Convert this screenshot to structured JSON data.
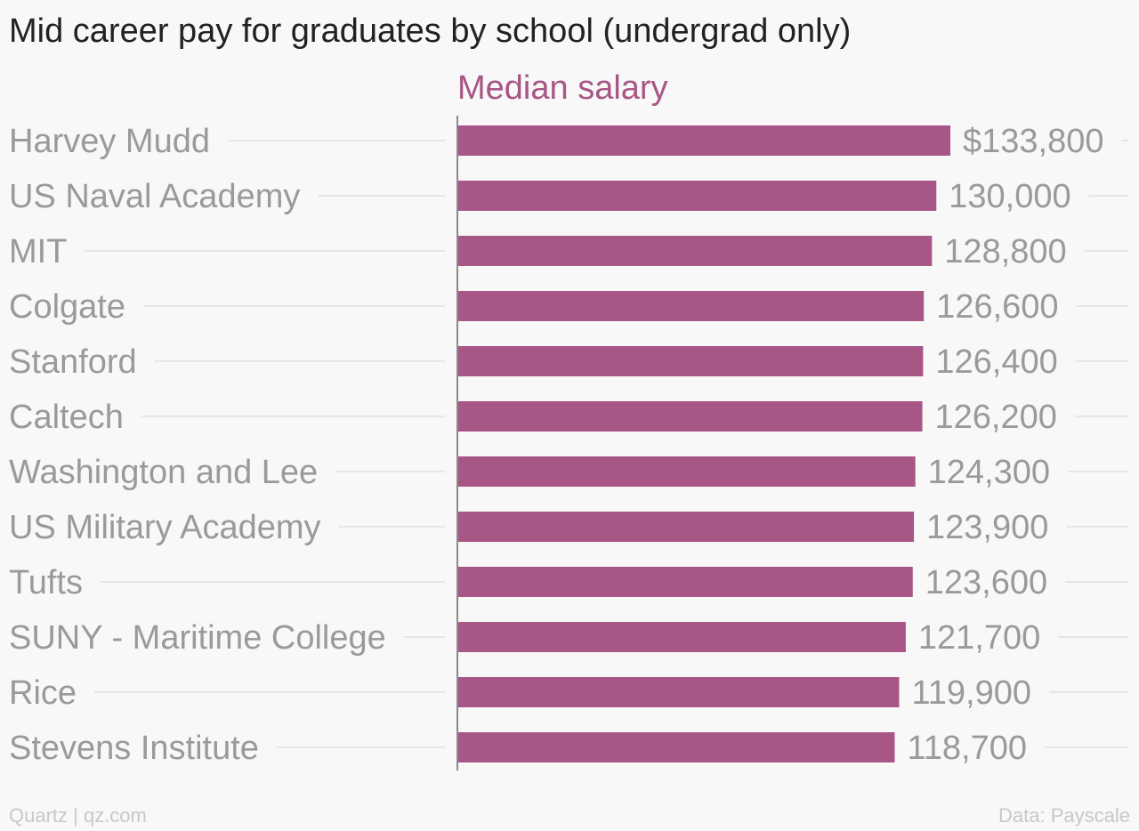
{
  "colors": {
    "bar": "#a85686",
    "label": "#9a9a9a",
    "title": "#222222",
    "grid": "#e6e6e6",
    "axis": "#8a8a8a"
  },
  "chart_data": {
    "type": "bar",
    "orientation": "horizontal",
    "title": "Mid career pay for graduates by school (undergrad only)",
    "series": [
      {
        "name": "Median salary",
        "values": [
          133800,
          130000,
          128800,
          126600,
          126400,
          126200,
          124300,
          123900,
          123600,
          121700,
          119900,
          118700
        ]
      }
    ],
    "categories": [
      "Harvey Mudd",
      "US Naval Academy",
      "MIT",
      "Colgate",
      "Stanford",
      "Caltech",
      "Washington and Lee",
      "US Military Academy",
      "Tufts",
      "SUNY - Maritime College",
      "Rice",
      "Stevens Institute"
    ],
    "value_labels": [
      "$133,800",
      "130,000",
      "128,800",
      "126,600",
      "126,400",
      "126,200",
      "124,300",
      "123,900",
      "123,600",
      "121,700",
      "119,900",
      "118,700"
    ],
    "xlim": [
      0,
      140000
    ],
    "grid": true,
    "legend": "top"
  },
  "footer": {
    "source_left": "Quartz | qz.com",
    "source_right": "Data: Payscale"
  }
}
